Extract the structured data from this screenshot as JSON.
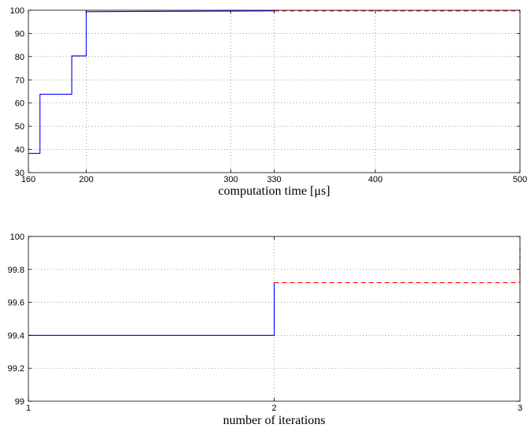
{
  "chart_data": [
    {
      "type": "line",
      "title": "",
      "xlabel": "computation time [μs]",
      "ylabel": "",
      "xlim": [
        160,
        500
      ],
      "ylim": [
        30,
        100
      ],
      "xticks": [
        160,
        200,
        300,
        330,
        400,
        500
      ],
      "yticks": [
        30,
        40,
        50,
        60,
        70,
        80,
        90,
        100
      ],
      "grid": true,
      "series": [
        {
          "color": "#0000ff",
          "style": "solid",
          "step": true,
          "x": [
            160,
            168,
            168,
            190,
            190,
            200,
            200,
            330
          ],
          "y": [
            38.3,
            38.3,
            63.8,
            63.8,
            80.3,
            80.3,
            99.4,
            99.7
          ]
        },
        {
          "color": "#ff0000",
          "style": "dashed",
          "step": true,
          "x": [
            330,
            500
          ],
          "y": [
            99.72,
            99.72
          ]
        }
      ]
    },
    {
      "type": "line",
      "title": "",
      "xlabel": "number of iterations",
      "ylabel": "",
      "xlim": [
        1,
        3
      ],
      "ylim": [
        99,
        100
      ],
      "xticks": [
        1,
        2,
        3
      ],
      "yticks": [
        99,
        99.2,
        99.4,
        99.6,
        99.8,
        100
      ],
      "grid": true,
      "series": [
        {
          "color": "#0000ff",
          "style": "solid",
          "step": true,
          "x": [
            1,
            2,
            2
          ],
          "y": [
            99.4,
            99.4,
            99.72
          ]
        },
        {
          "color": "#ff0000",
          "style": "dashed",
          "step": true,
          "x": [
            2,
            3,
            3
          ],
          "y": [
            99.72,
            99.72,
            99.96
          ]
        }
      ]
    }
  ]
}
